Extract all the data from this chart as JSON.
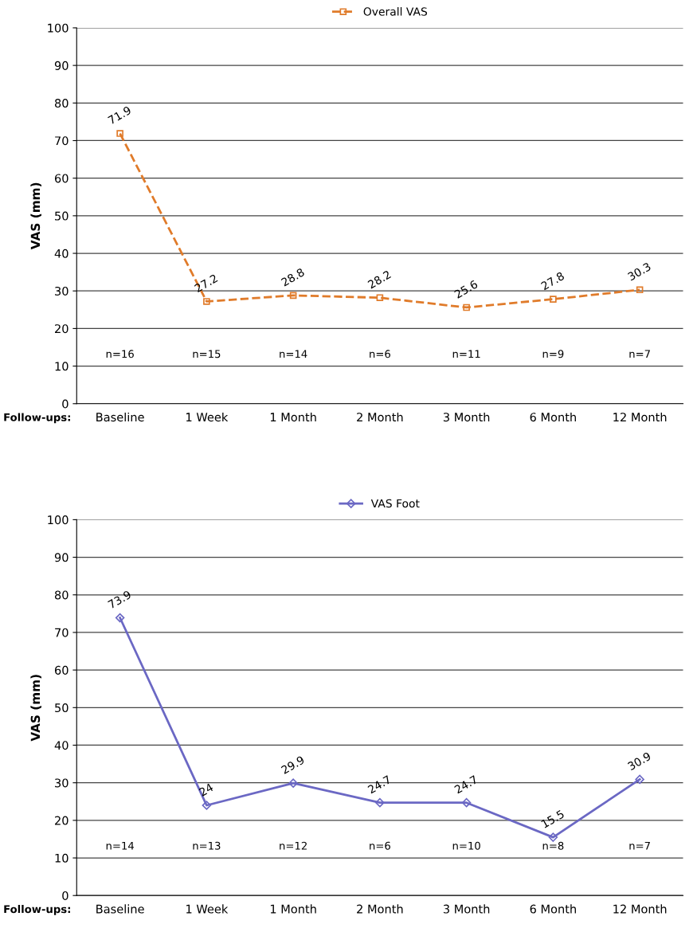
{
  "chart_data": [
    {
      "type": "line",
      "categories": [
        "Baseline",
        "1 Week",
        "1 Month",
        "2 Month",
        "3 Month",
        "6 Month",
        "12 Month"
      ],
      "series": [
        {
          "name": "Overall VAS",
          "color": "#e07b2a",
          "values": [
            71.9,
            27.2,
            28.8,
            28.2,
            25.6,
            27.8,
            30.3
          ]
        }
      ],
      "ylabel": "VAS (mm)",
      "xlabel": "Follow-ups:",
      "ylim": [
        0,
        100
      ],
      "yticks": [
        0,
        10,
        20,
        30,
        40,
        50,
        60,
        70,
        80,
        90,
        100
      ],
      "grid": "y",
      "legend": "top",
      "marker": "square",
      "line_style": "dashed",
      "data_labels": true,
      "annotations": [
        "n=16",
        "n=15",
        "n=14",
        "n=6",
        "n=11",
        "n=9",
        "n=7"
      ]
    },
    {
      "type": "line",
      "categories": [
        "Baseline",
        "1 Week",
        "1 Month",
        "2 Month",
        "3 Month",
        "6 Month",
        "12 Month"
      ],
      "series": [
        {
          "name": "VAS Foot",
          "color": "#6b68c4",
          "values": [
            73.9,
            24,
            29.9,
            24.7,
            24.7,
            15.5,
            30.9
          ]
        }
      ],
      "ylabel": "VAS (mm)",
      "xlabel": "Follow-ups:",
      "ylim": [
        0,
        100
      ],
      "yticks": [
        0,
        10,
        20,
        30,
        40,
        50,
        60,
        70,
        80,
        90,
        100
      ],
      "grid": "y",
      "legend": "top",
      "marker": "diamond",
      "line_style": "solid",
      "data_labels": true,
      "annotations": [
        "n=14",
        "n=13",
        "n=12",
        "n=6",
        "n=10",
        "n=8",
        "n=7"
      ]
    }
  ]
}
